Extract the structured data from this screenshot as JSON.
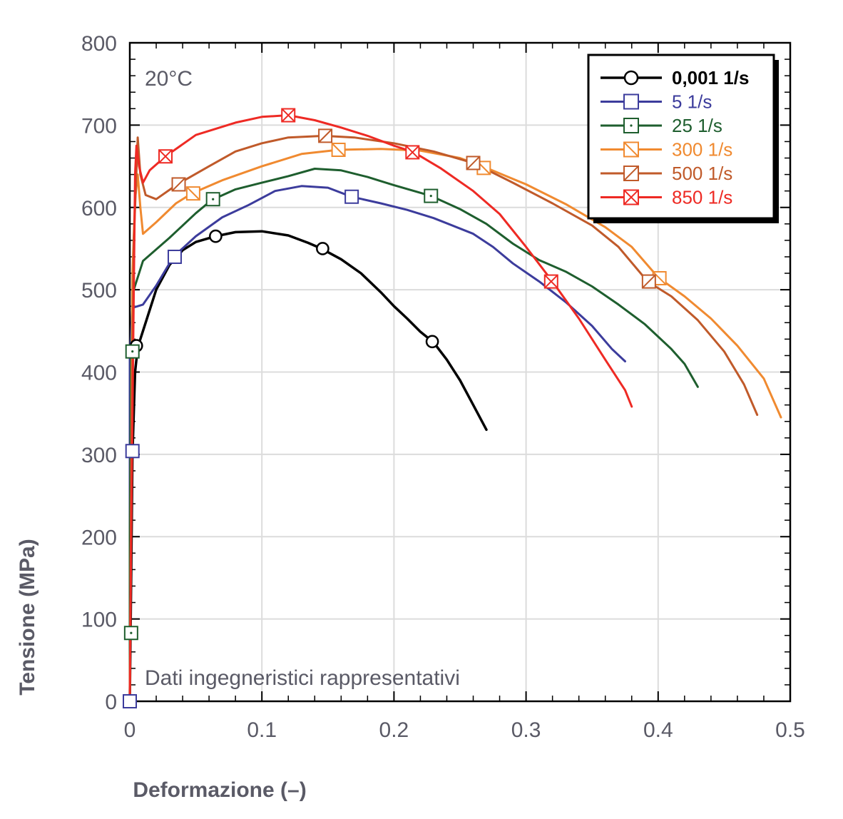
{
  "chart_data": {
    "type": "line",
    "title": "",
    "xlabel": "Deformazione (–)",
    "ylabel": "Tensione (MPa)",
    "xlim": [
      0,
      0.5
    ],
    "ylim": [
      0,
      800
    ],
    "xticks": [
      "0",
      "0.1",
      "0.2",
      "0.3",
      "0.4",
      "0.5"
    ],
    "yticks": [
      "0",
      "100",
      "200",
      "300",
      "400",
      "500",
      "600",
      "700",
      "800"
    ],
    "grid": true,
    "legend_position": "top-right",
    "annotations": {
      "temperature": "20°C",
      "note": "Dati ingegneristici rappresentativi"
    },
    "series": [
      {
        "name": "0,001 1/s",
        "color": "#000000",
        "marker": "circle",
        "points": [
          [
            0,
            0
          ],
          [
            0.001,
            150
          ],
          [
            0.002,
            300
          ],
          [
            0.004,
            400
          ],
          [
            0.006,
            430
          ],
          [
            0.01,
            450
          ],
          [
            0.02,
            500
          ],
          [
            0.03,
            530
          ],
          [
            0.04,
            548
          ],
          [
            0.05,
            558
          ],
          [
            0.065,
            565
          ],
          [
            0.08,
            570
          ],
          [
            0.1,
            571
          ],
          [
            0.12,
            566
          ],
          [
            0.135,
            557
          ],
          [
            0.145,
            550
          ],
          [
            0.16,
            537
          ],
          [
            0.175,
            520
          ],
          [
            0.19,
            497
          ],
          [
            0.2,
            480
          ],
          [
            0.21,
            465
          ],
          [
            0.22,
            449
          ],
          [
            0.23,
            436
          ],
          [
            0.24,
            415
          ],
          [
            0.25,
            390
          ],
          [
            0.26,
            360
          ],
          [
            0.27,
            330
          ]
        ],
        "markers": [
          [
            0.005,
            432
          ],
          [
            0.065,
            565
          ],
          [
            0.146,
            550
          ],
          [
            0.229,
            437
          ]
        ]
      },
      {
        "name": "5 1/s",
        "color": "#3c3c9c",
        "marker": "square",
        "points": [
          [
            0,
            0
          ],
          [
            0,
            150
          ],
          [
            0,
            300
          ],
          [
            0,
            420
          ],
          [
            0.002,
            478
          ],
          [
            0.01,
            482
          ],
          [
            0.02,
            505
          ],
          [
            0.033,
            540
          ],
          [
            0.05,
            565
          ],
          [
            0.07,
            588
          ],
          [
            0.09,
            603
          ],
          [
            0.11,
            620
          ],
          [
            0.13,
            626
          ],
          [
            0.15,
            624
          ],
          [
            0.168,
            613
          ],
          [
            0.19,
            605
          ],
          [
            0.21,
            597
          ],
          [
            0.23,
            587
          ],
          [
            0.26,
            568
          ],
          [
            0.275,
            552
          ],
          [
            0.29,
            532
          ],
          [
            0.31,
            510
          ],
          [
            0.33,
            485
          ],
          [
            0.35,
            456
          ],
          [
            0.365,
            428
          ],
          [
            0.375,
            413
          ]
        ],
        "markers": [
          [
            0,
            0
          ],
          [
            0.002,
            304
          ],
          [
            0.034,
            540
          ],
          [
            0.168,
            613
          ]
        ]
      },
      {
        "name": "25 1/s",
        "color": "#1e5e2e",
        "marker": "square-dot",
        "points": [
          [
            0,
            0
          ],
          [
            0,
            83
          ],
          [
            0,
            200
          ],
          [
            0.001,
            425
          ],
          [
            0.003,
            500
          ],
          [
            0.01,
            535
          ],
          [
            0.03,
            563
          ],
          [
            0.05,
            593
          ],
          [
            0.062,
            609
          ],
          [
            0.08,
            622
          ],
          [
            0.1,
            630
          ],
          [
            0.12,
            638
          ],
          [
            0.14,
            647
          ],
          [
            0.16,
            645
          ],
          [
            0.18,
            637
          ],
          [
            0.2,
            627
          ],
          [
            0.228,
            614
          ],
          [
            0.25,
            598
          ],
          [
            0.27,
            580
          ],
          [
            0.29,
            556
          ],
          [
            0.31,
            536
          ],
          [
            0.33,
            522
          ],
          [
            0.35,
            504
          ],
          [
            0.37,
            482
          ],
          [
            0.39,
            458
          ],
          [
            0.41,
            428
          ],
          [
            0.42,
            410
          ],
          [
            0.43,
            382
          ]
        ],
        "markers": [
          [
            0.001,
            83
          ],
          [
            0.002,
            425
          ],
          [
            0.063,
            610
          ],
          [
            0.228,
            614
          ]
        ]
      },
      {
        "name": "300 1/s",
        "color": "#f08a30",
        "marker": "square-back",
        "points": [
          [
            0,
            0
          ],
          [
            0.001,
            250
          ],
          [
            0.002,
            520
          ],
          [
            0.004,
            610
          ],
          [
            0.006,
            640
          ],
          [
            0.008,
            600
          ],
          [
            0.01,
            568
          ],
          [
            0.02,
            582
          ],
          [
            0.035,
            605
          ],
          [
            0.047,
            617
          ],
          [
            0.07,
            633
          ],
          [
            0.1,
            650
          ],
          [
            0.13,
            665
          ],
          [
            0.158,
            670
          ],
          [
            0.19,
            671
          ],
          [
            0.22,
            669
          ],
          [
            0.25,
            660
          ],
          [
            0.27,
            648
          ],
          [
            0.3,
            628
          ],
          [
            0.33,
            604
          ],
          [
            0.36,
            576
          ],
          [
            0.38,
            552
          ],
          [
            0.4,
            515
          ],
          [
            0.42,
            492
          ],
          [
            0.44,
            465
          ],
          [
            0.46,
            432
          ],
          [
            0.48,
            392
          ],
          [
            0.493,
            345
          ]
        ],
        "markers": [
          [
            0.048,
            617
          ],
          [
            0.158,
            670
          ],
          [
            0.268,
            648
          ],
          [
            0.401,
            514
          ]
        ]
      },
      {
        "name": "500 1/s",
        "color": "#c05a2a",
        "marker": "square-slash",
        "points": [
          [
            0,
            0
          ],
          [
            0.001,
            250
          ],
          [
            0.003,
            560
          ],
          [
            0.006,
            685
          ],
          [
            0.008,
            640
          ],
          [
            0.012,
            615
          ],
          [
            0.02,
            610
          ],
          [
            0.036,
            628
          ],
          [
            0.06,
            650
          ],
          [
            0.08,
            668
          ],
          [
            0.1,
            678
          ],
          [
            0.12,
            685
          ],
          [
            0.147,
            687
          ],
          [
            0.17,
            685
          ],
          [
            0.2,
            678
          ],
          [
            0.23,
            668
          ],
          [
            0.26,
            654
          ],
          [
            0.29,
            630
          ],
          [
            0.32,
            605
          ],
          [
            0.35,
            578
          ],
          [
            0.37,
            552
          ],
          [
            0.392,
            510
          ],
          [
            0.41,
            492
          ],
          [
            0.43,
            463
          ],
          [
            0.45,
            425
          ],
          [
            0.465,
            385
          ],
          [
            0.475,
            348
          ]
        ],
        "markers": [
          [
            0.037,
            628
          ],
          [
            0.148,
            687
          ],
          [
            0.26,
            654
          ],
          [
            0.393,
            510
          ]
        ]
      },
      {
        "name": "850 1/s",
        "color": "#ee2a24",
        "marker": "square-x",
        "points": [
          [
            0,
            0
          ],
          [
            0.001,
            200
          ],
          [
            0.003,
            500
          ],
          [
            0.004,
            640
          ],
          [
            0.005,
            675
          ],
          [
            0.007,
            650
          ],
          [
            0.01,
            630
          ],
          [
            0.015,
            645
          ],
          [
            0.027,
            662
          ],
          [
            0.05,
            688
          ],
          [
            0.08,
            703
          ],
          [
            0.1,
            710
          ],
          [
            0.12,
            712
          ],
          [
            0.14,
            706
          ],
          [
            0.16,
            697
          ],
          [
            0.18,
            687
          ],
          [
            0.2,
            675
          ],
          [
            0.215,
            667
          ],
          [
            0.235,
            648
          ],
          [
            0.26,
            620
          ],
          [
            0.28,
            592
          ],
          [
            0.3,
            552
          ],
          [
            0.32,
            510
          ],
          [
            0.34,
            465
          ],
          [
            0.36,
            415
          ],
          [
            0.375,
            378
          ],
          [
            0.38,
            358
          ]
        ],
        "markers": [
          [
            0.027,
            662
          ],
          [
            0.12,
            712
          ],
          [
            0.214,
            667
          ],
          [
            0.319,
            510
          ]
        ]
      }
    ]
  }
}
